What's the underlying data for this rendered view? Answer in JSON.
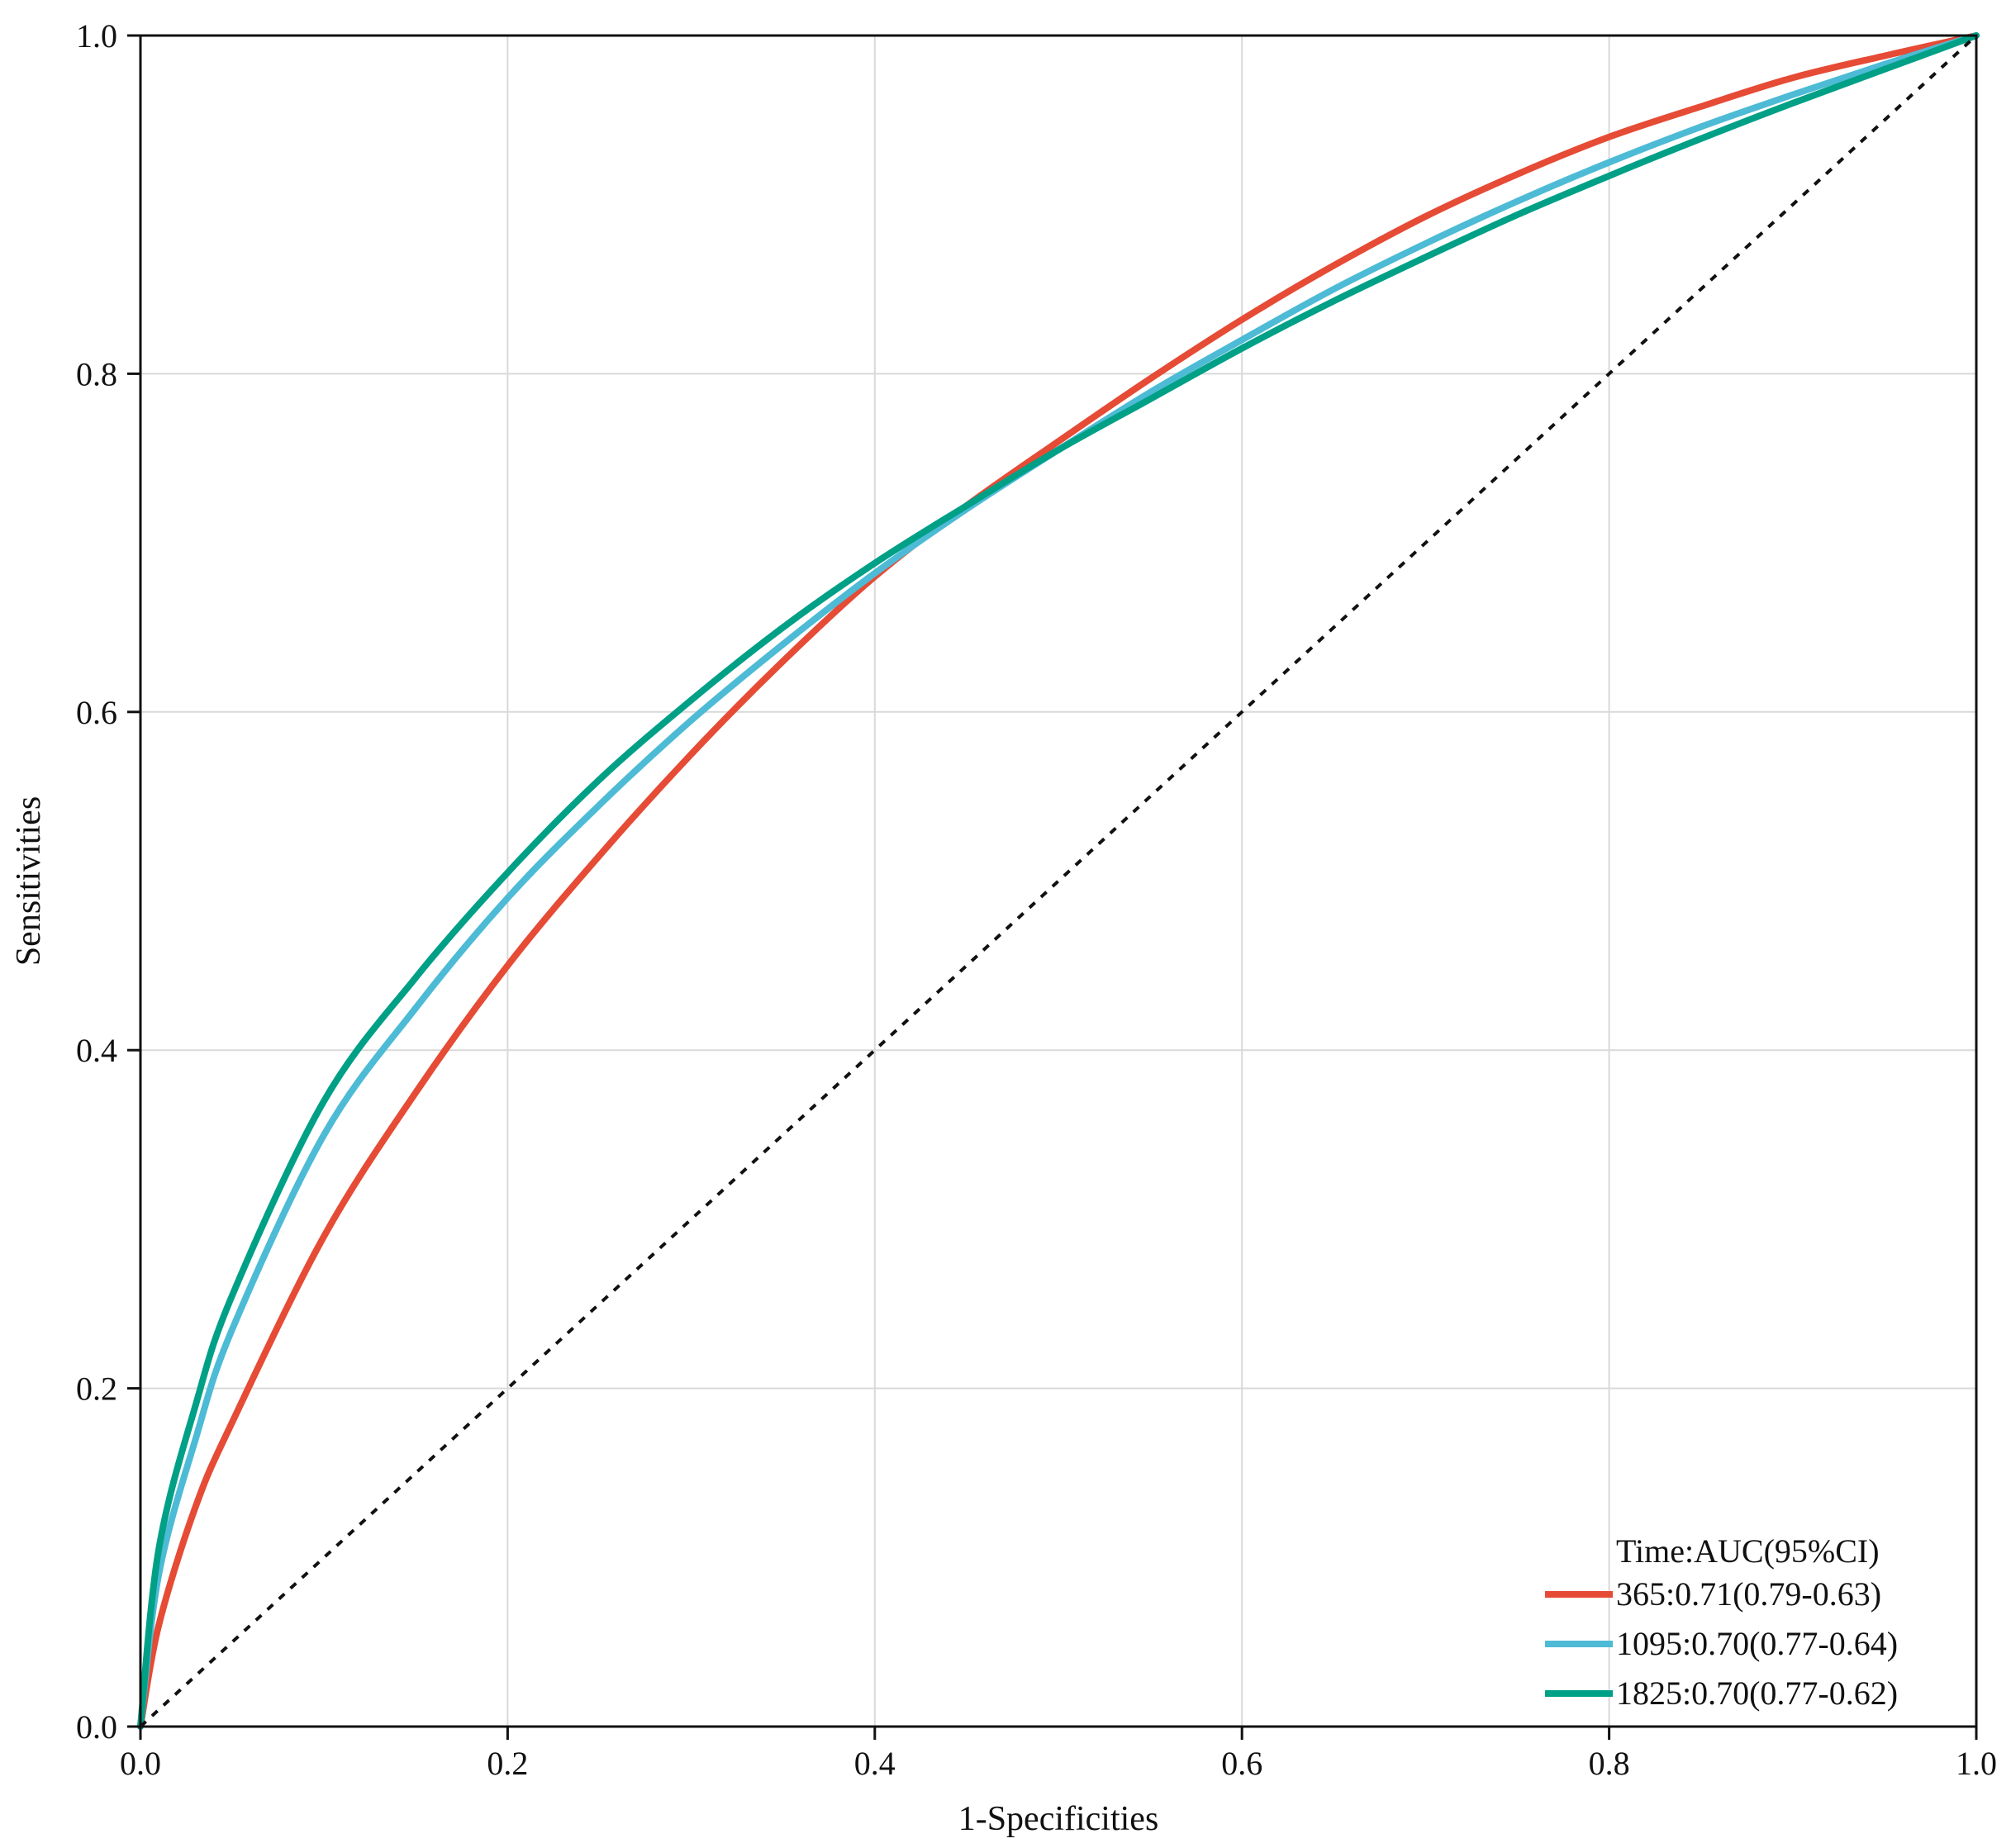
{
  "chart_data": {
    "type": "line",
    "xlabel": "1-Specificities",
    "ylabel": "Sensitivities",
    "xlim": [
      0,
      1
    ],
    "ylim": [
      0,
      1
    ],
    "xticks": [
      "0.0",
      "0.2",
      "0.4",
      "0.6",
      "0.8",
      "1.0"
    ],
    "yticks": [
      "0.0",
      "0.2",
      "0.4",
      "0.6",
      "0.8",
      "1.0"
    ],
    "grid": true,
    "legend": {
      "title": "Time:AUC(95%CI)",
      "position": "bottom-right"
    },
    "series": [
      {
        "name": "365:0.71(0.79-0.63)",
        "color": "#E64B35",
        "points": [
          [
            0,
            0
          ],
          [
            0.01,
            0.06
          ],
          [
            0.03,
            0.13
          ],
          [
            0.05,
            0.18
          ],
          [
            0.1,
            0.29
          ],
          [
            0.15,
            0.375
          ],
          [
            0.2,
            0.45
          ],
          [
            0.25,
            0.515
          ],
          [
            0.3,
            0.575
          ],
          [
            0.35,
            0.63
          ],
          [
            0.4,
            0.68
          ],
          [
            0.45,
            0.722
          ],
          [
            0.5,
            0.76
          ],
          [
            0.55,
            0.797
          ],
          [
            0.6,
            0.832
          ],
          [
            0.65,
            0.864
          ],
          [
            0.7,
            0.893
          ],
          [
            0.75,
            0.918
          ],
          [
            0.8,
            0.94
          ],
          [
            0.85,
            0.958
          ],
          [
            0.9,
            0.975
          ],
          [
            0.95,
            0.988
          ],
          [
            1,
            1
          ]
        ]
      },
      {
        "name": "1095:0.70(0.77-0.64)",
        "color": "#4DBBD5",
        "points": [
          [
            0,
            0
          ],
          [
            0.01,
            0.09
          ],
          [
            0.03,
            0.17
          ],
          [
            0.05,
            0.235
          ],
          [
            0.1,
            0.35
          ],
          [
            0.15,
            0.425
          ],
          [
            0.2,
            0.49
          ],
          [
            0.25,
            0.545
          ],
          [
            0.3,
            0.595
          ],
          [
            0.35,
            0.64
          ],
          [
            0.4,
            0.682
          ],
          [
            0.45,
            0.72
          ],
          [
            0.5,
            0.755
          ],
          [
            0.55,
            0.789
          ],
          [
            0.6,
            0.82
          ],
          [
            0.65,
            0.85
          ],
          [
            0.7,
            0.877
          ],
          [
            0.75,
            0.902
          ],
          [
            0.8,
            0.925
          ],
          [
            0.85,
            0.946
          ],
          [
            0.9,
            0.965
          ],
          [
            0.95,
            0.983
          ],
          [
            1,
            1
          ]
        ]
      },
      {
        "name": "1825:0.70(0.77-0.62)",
        "color": "#00A087",
        "points": [
          [
            0,
            0
          ],
          [
            0.01,
            0.105
          ],
          [
            0.03,
            0.19
          ],
          [
            0.05,
            0.255
          ],
          [
            0.1,
            0.37
          ],
          [
            0.15,
            0.443
          ],
          [
            0.2,
            0.505
          ],
          [
            0.25,
            0.56
          ],
          [
            0.3,
            0.607
          ],
          [
            0.35,
            0.65
          ],
          [
            0.4,
            0.688
          ],
          [
            0.45,
            0.722
          ],
          [
            0.5,
            0.755
          ],
          [
            0.55,
            0.785
          ],
          [
            0.6,
            0.815
          ],
          [
            0.65,
            0.843
          ],
          [
            0.7,
            0.869
          ],
          [
            0.75,
            0.894
          ],
          [
            0.8,
            0.917
          ],
          [
            0.85,
            0.939
          ],
          [
            0.9,
            0.96
          ],
          [
            0.95,
            0.98
          ],
          [
            1,
            1
          ]
        ]
      },
      {
        "name": "reference",
        "color": "#111111",
        "dashed": true,
        "points": [
          [
            0,
            0
          ],
          [
            1,
            1
          ]
        ]
      }
    ]
  }
}
